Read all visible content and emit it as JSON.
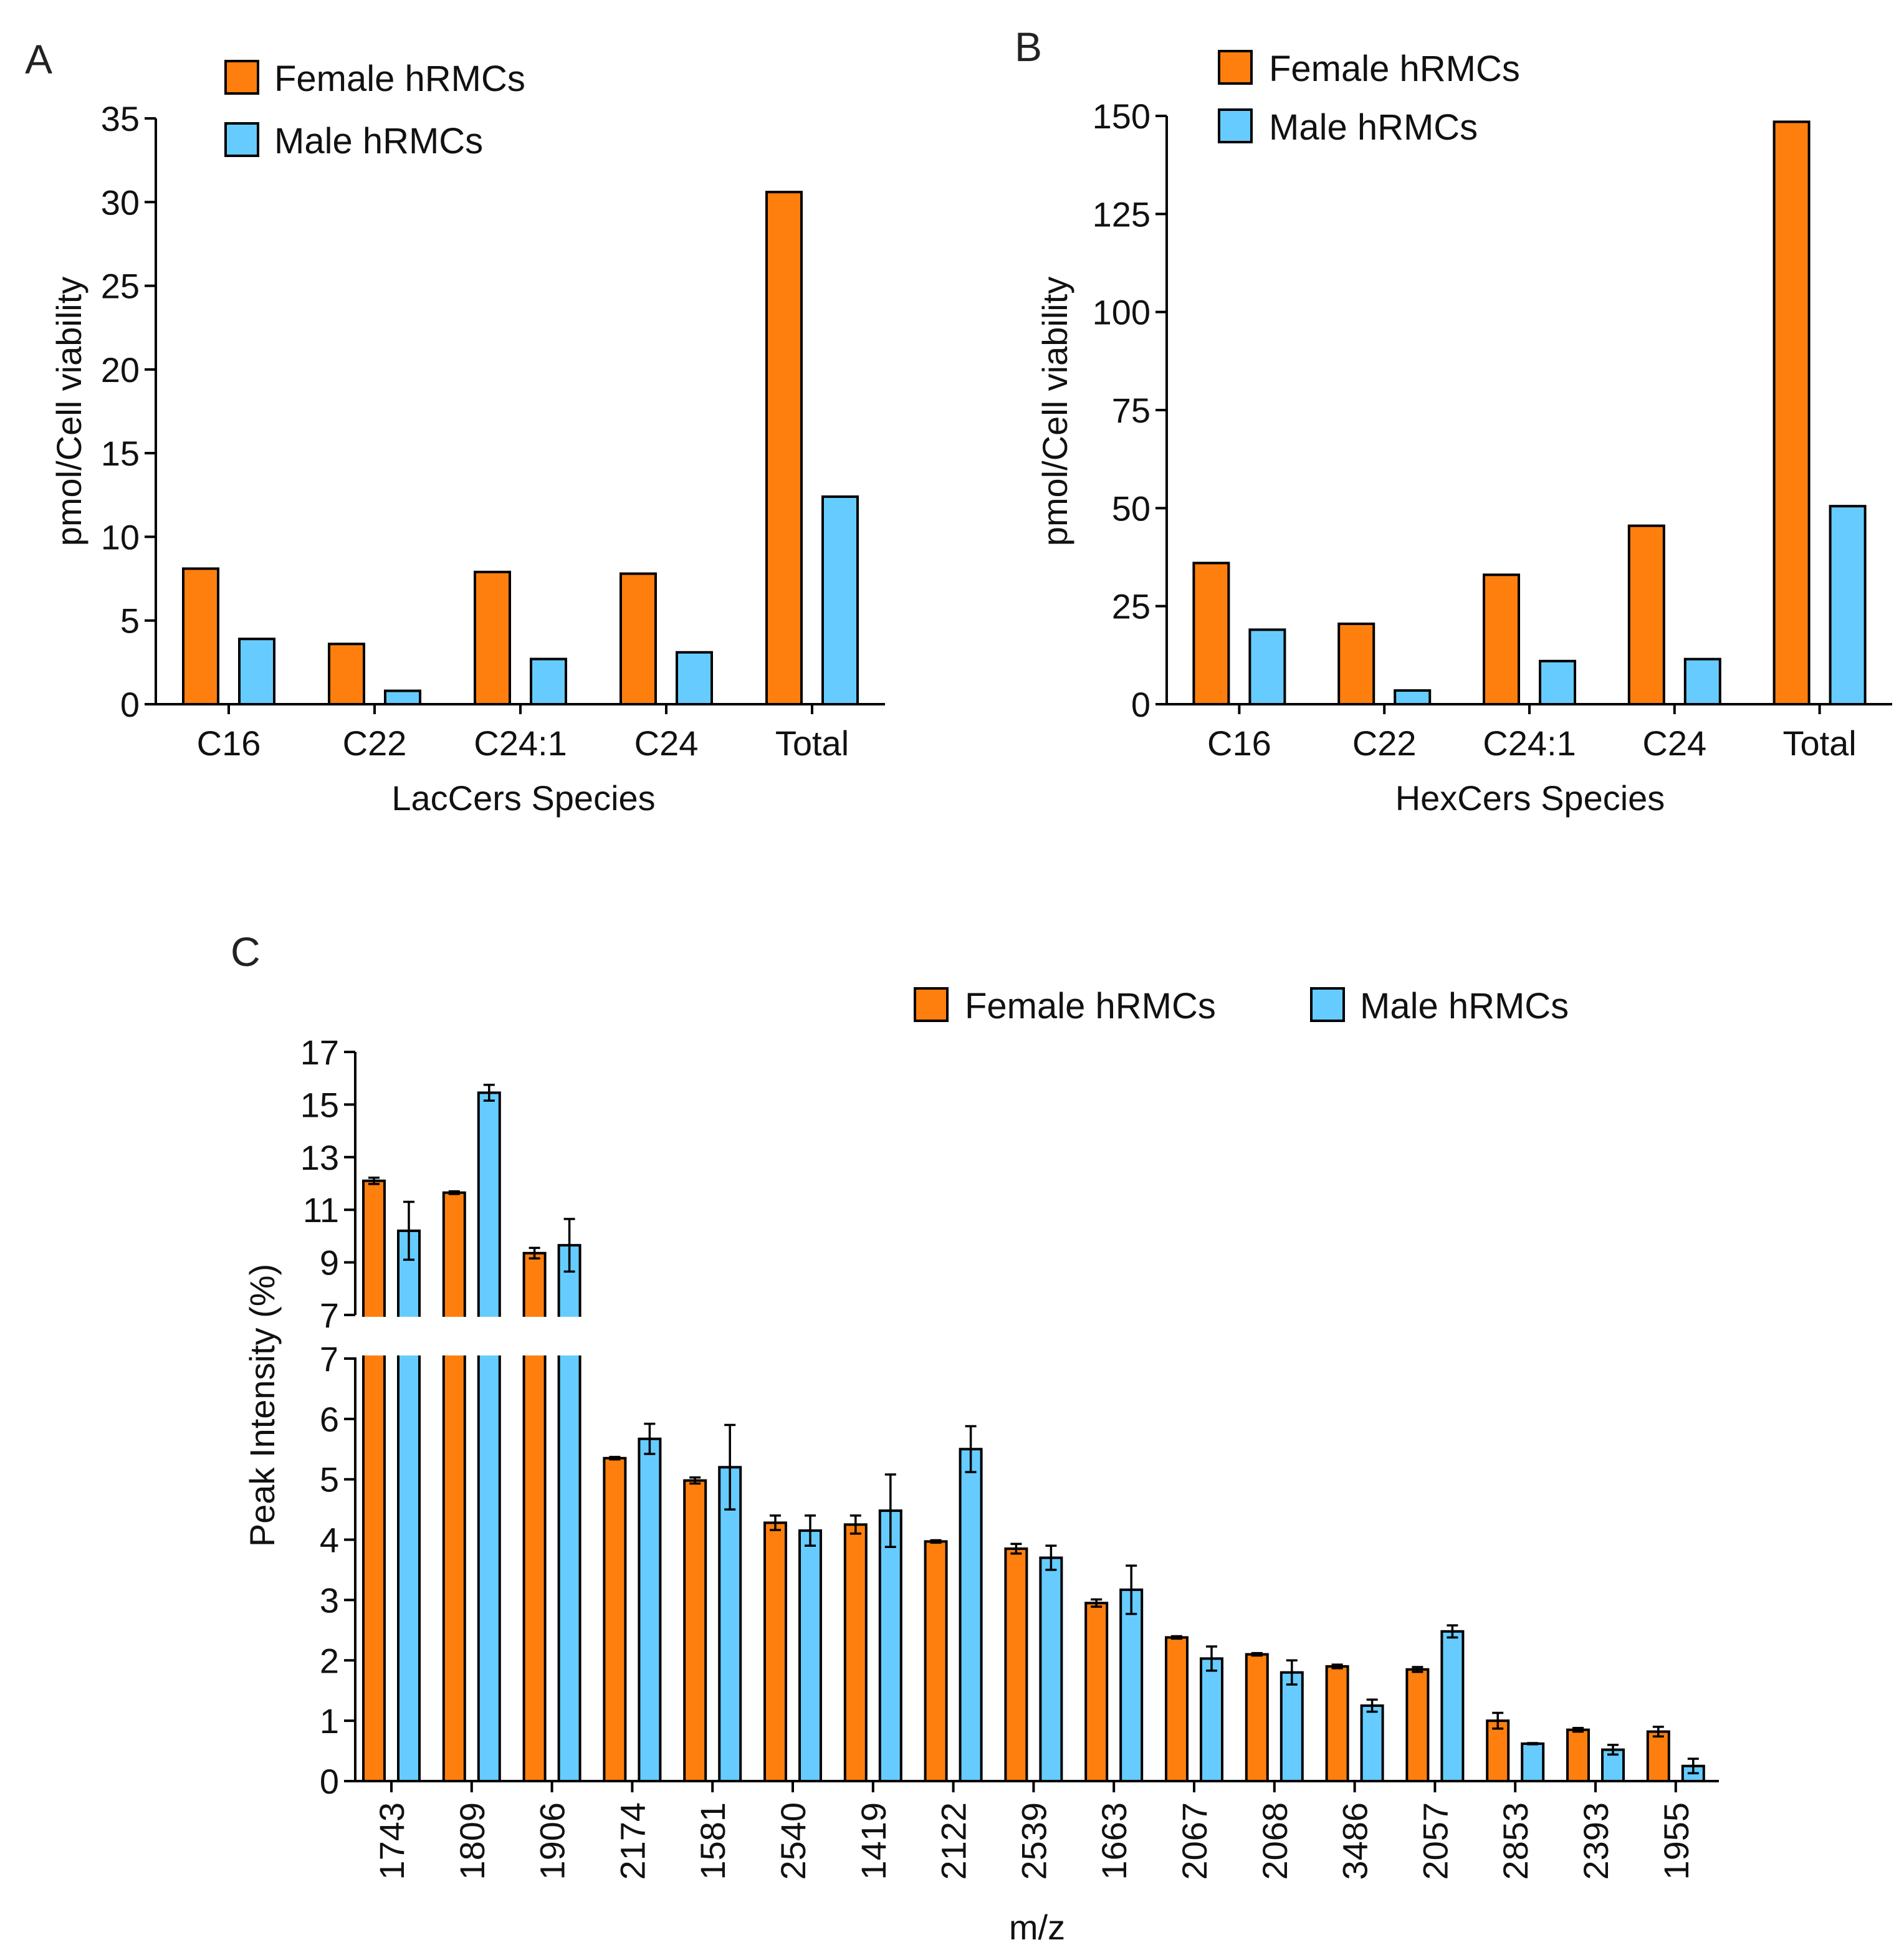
{
  "colors": {
    "female": "#ff7f0e",
    "male": "#66ccff",
    "axis": "#000000"
  },
  "chart_data": [
    {
      "type": "bar",
      "panel_label": "A",
      "categories": [
        "C16",
        "C22",
        "C24:1",
        "C24",
        "Total"
      ],
      "series": [
        {
          "name": "Female hRMCs",
          "values": [
            8.1,
            3.6,
            7.9,
            7.8,
            30.6
          ]
        },
        {
          "name": "Male hRMCs",
          "values": [
            3.9,
            0.8,
            2.7,
            3.1,
            12.4
          ]
        }
      ],
      "xlabel": "LacCers Species",
      "ylabel": "pmol/Cell viability",
      "ylim": [
        0,
        35
      ],
      "yticks": [
        0,
        5,
        10,
        15,
        20,
        25,
        30,
        35
      ],
      "legend": "top-left"
    },
    {
      "type": "bar",
      "panel_label": "B",
      "categories": [
        "C16",
        "C22",
        "C24:1",
        "C24",
        "Total"
      ],
      "series": [
        {
          "name": "Female hRMCs",
          "values": [
            36,
            20.5,
            33,
            45.5,
            148.5
          ]
        },
        {
          "name": "Male hRMCs",
          "values": [
            19,
            3.5,
            11,
            11.5,
            50.5
          ]
        }
      ],
      "xlabel": "HexCers Species",
      "ylabel": "pmol/Cell viability",
      "ylim": [
        0,
        150
      ],
      "yticks": [
        0,
        25,
        50,
        75,
        100,
        125,
        150
      ],
      "legend": "top-left"
    },
    {
      "type": "bar",
      "panel_label": "C",
      "categories": [
        "1743",
        "1809",
        "1906",
        "2174",
        "1581",
        "2540",
        "1419",
        "2122",
        "2539",
        "1663",
        "2067",
        "2068",
        "3486",
        "2057",
        "2853",
        "2393",
        "1955"
      ],
      "series": [
        {
          "name": "Female hRMCs",
          "values": [
            12.1,
            11.65,
            9.35,
            5.35,
            4.98,
            4.28,
            4.25,
            3.97,
            3.85,
            2.95,
            2.38,
            2.1,
            1.9,
            1.85,
            1.0,
            0.85,
            0.82
          ],
          "errors": [
            0.12,
            0.05,
            0.2,
            0.02,
            0.05,
            0.12,
            0.15,
            0.02,
            0.08,
            0.06,
            0.02,
            0.02,
            0.03,
            0.04,
            0.13,
            0.03,
            0.08
          ]
        },
        {
          "name": "Male hRMCs",
          "values": [
            10.2,
            15.45,
            9.65,
            5.67,
            5.2,
            4.15,
            4.48,
            5.5,
            3.7,
            3.17,
            2.03,
            1.8,
            1.25,
            2.48,
            0.62,
            0.52,
            0.25
          ],
          "errors": [
            1.1,
            0.3,
            1.0,
            0.25,
            0.7,
            0.25,
            0.6,
            0.38,
            0.2,
            0.4,
            0.2,
            0.2,
            0.1,
            0.1,
            0.01,
            0.08,
            0.12
          ]
        }
      ],
      "xlabel": "m/z",
      "ylabel": "Peak Intensity (%)",
      "ylim_lower": [
        0,
        7
      ],
      "ylim_upper": [
        7,
        17
      ],
      "yticks_lower": [
        0,
        1,
        2,
        3,
        4,
        5,
        6,
        7
      ],
      "yticks_upper": [
        7,
        9,
        11,
        13,
        15,
        17
      ],
      "axis_break": true,
      "legend": "top-right"
    }
  ]
}
